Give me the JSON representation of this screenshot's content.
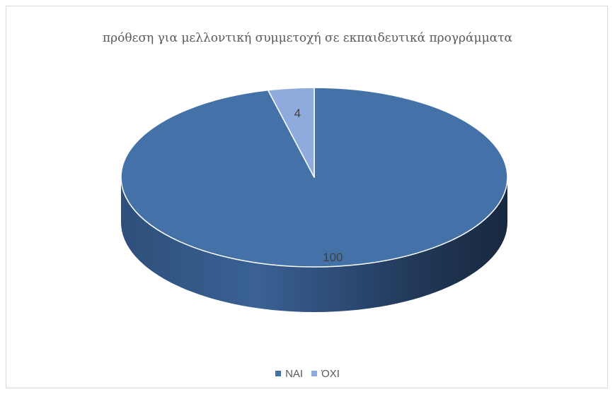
{
  "chart_data": {
    "type": "pie",
    "title": "πρόθεση για μελλοντική συμμετοχή σε εκπαιδευτικά προγράμματα",
    "categories": [
      "ΝΑΙ",
      "ΌΧΙ"
    ],
    "values": [
      100,
      4
    ],
    "colors": [
      "#4472a8",
      "#8faadc"
    ],
    "style": "3d",
    "legend_position": "bottom",
    "data_labels": true
  }
}
